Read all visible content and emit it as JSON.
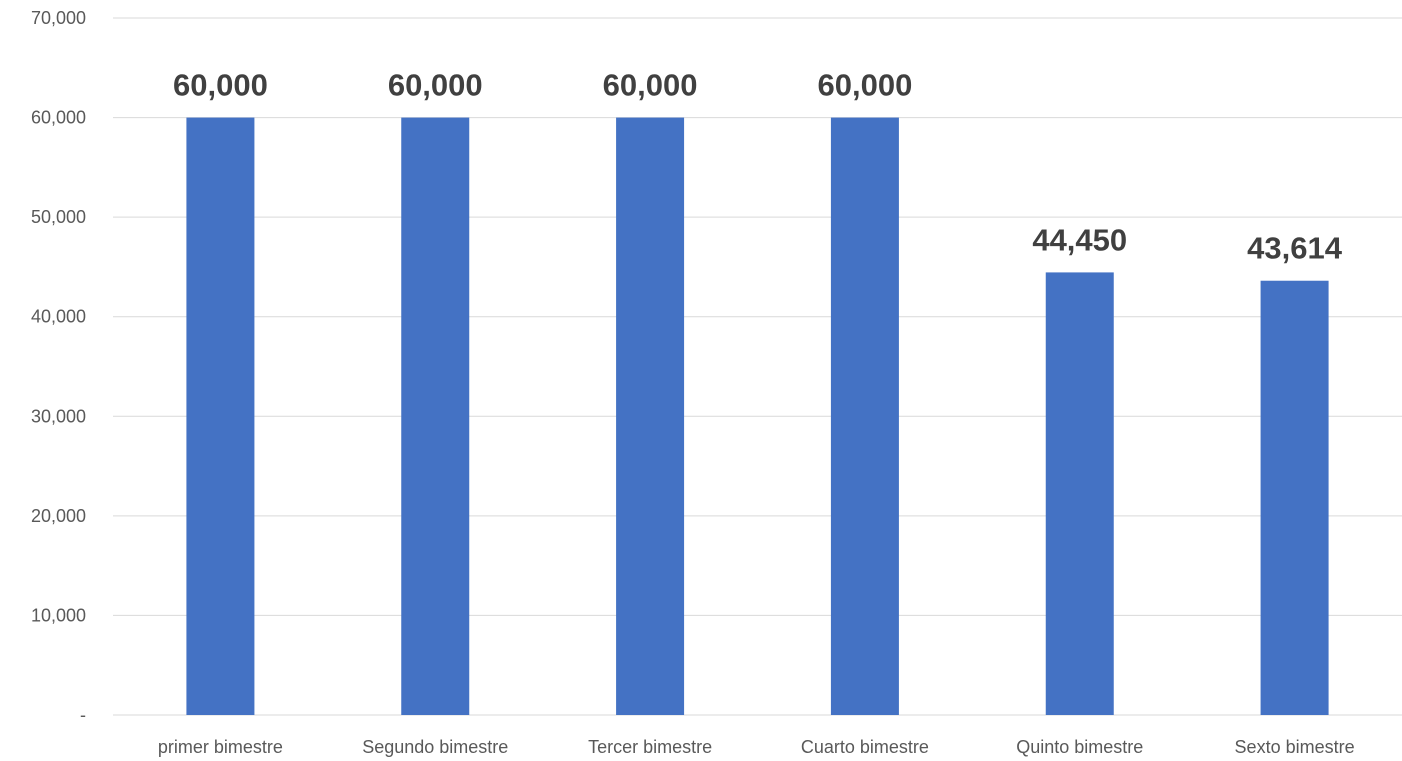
{
  "chart_data": {
    "type": "bar",
    "categories": [
      "primer bimestre",
      "Segundo bimestre",
      "Tercer bimestre",
      "Cuarto bimestre",
      "Quinto bimestre",
      "Sexto bimestre"
    ],
    "values": [
      60000,
      60000,
      60000,
      60000,
      44450,
      43614
    ],
    "data_labels": [
      "60,000",
      "60,000",
      "60,000",
      "60,000",
      "44,450",
      "43,614"
    ],
    "y_ticks": [
      {
        "value": 0,
        "label": "-"
      },
      {
        "value": 10000,
        "label": "10,000"
      },
      {
        "value": 20000,
        "label": "20,000"
      },
      {
        "value": 30000,
        "label": "30,000"
      },
      {
        "value": 40000,
        "label": "40,000"
      },
      {
        "value": 50000,
        "label": "50,000"
      },
      {
        "value": 60000,
        "label": "60,000"
      },
      {
        "value": 70000,
        "label": "70,000"
      }
    ],
    "ylim": [
      0,
      70000
    ],
    "grid": true,
    "bar_color": "#4472c4",
    "title": "",
    "xlabel": "",
    "ylabel": ""
  }
}
